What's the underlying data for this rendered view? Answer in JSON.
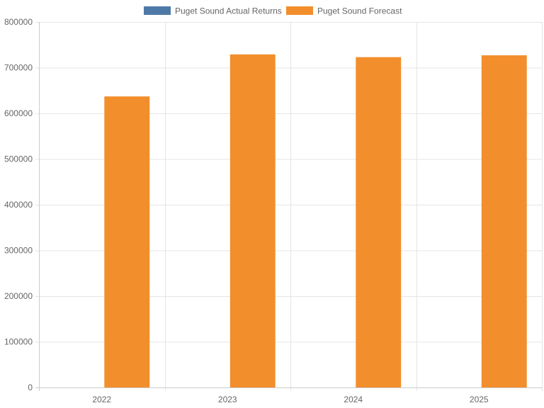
{
  "chart_data": {
    "type": "bar",
    "categories": [
      "2022",
      "2023",
      "2024",
      "2025"
    ],
    "series": [
      {
        "name": "Puget Sound Actual Returns",
        "color": "#4e79a7",
        "values": [
          null,
          null,
          null,
          null
        ]
      },
      {
        "name": "Puget Sound Forecast",
        "color": "#f28e2b",
        "values": [
          637000,
          729000,
          723000,
          727000
        ]
      }
    ],
    "ylim": [
      0,
      800000
    ],
    "yticks": [
      "0",
      "100000",
      "200000",
      "300000",
      "400000",
      "500000",
      "600000",
      "700000",
      "800000"
    ],
    "grid": true,
    "legend_position": "top"
  }
}
